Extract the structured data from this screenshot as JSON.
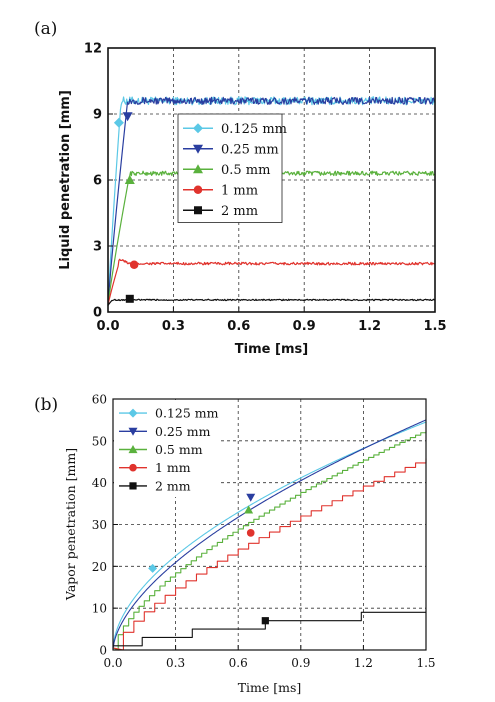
{
  "chart_data": [
    {
      "panel_label": "(a)",
      "type": "line",
      "xlabel": "Time [ms]",
      "ylabel": "Liquid penetration [mm]",
      "xlim": [
        0.0,
        1.5
      ],
      "ylim": [
        0,
        12
      ],
      "xticks": [
        "0.0",
        "0.3",
        "0.6",
        "0.9",
        "1.2",
        "1.5"
      ],
      "yticks": [
        "0",
        "3",
        "6",
        "9",
        "12"
      ],
      "grid": "dashed",
      "legend_position": "center-left",
      "series": [
        {
          "name": "0.125 mm",
          "color": "#5bc8e6",
          "marker": "diamond",
          "rise_time": 0.06,
          "plateau": 9.6,
          "noise": 0.18,
          "marker_point": [
            0.05,
            8.6
          ]
        },
        {
          "name": "0.25 mm",
          "color": "#2a3ea0",
          "marker": "triangle-down",
          "rise_time": 0.09,
          "plateau": 9.6,
          "noise": 0.16,
          "marker_point": [
            0.09,
            8.9
          ]
        },
        {
          "name": "0.5 mm",
          "color": "#5ab13d",
          "marker": "triangle-up",
          "rise_time": 0.1,
          "plateau": 6.3,
          "noise": 0.1,
          "marker_point": [
            0.1,
            6.0
          ]
        },
        {
          "name": "1 mm",
          "color": "#e0332d",
          "marker": "circle",
          "rise_time": 0.05,
          "plateau": 2.2,
          "noise": 0.06,
          "marker_point": [
            0.12,
            2.15
          ]
        },
        {
          "name": "2 mm",
          "color": "#111111",
          "marker": "square",
          "rise_time": 0.02,
          "plateau": 0.55,
          "noise": 0.03,
          "marker_point": [
            0.1,
            0.6
          ]
        }
      ]
    },
    {
      "panel_label": "(b)",
      "type": "line",
      "xlabel": "Time [ms]",
      "ylabel": "Vapor penetration [mm]",
      "xlim": [
        0.0,
        1.5
      ],
      "ylim": [
        0,
        60
      ],
      "xticks": [
        "0.0",
        "0.3",
        "0.6",
        "0.9",
        "1.2",
        "1.5"
      ],
      "yticks": [
        "0",
        "10",
        "20",
        "30",
        "40",
        "50",
        "60"
      ],
      "grid": "dashed",
      "legend_position": "top-left",
      "series": [
        {
          "name": "0.125 mm",
          "color": "#5bc8e6",
          "marker": "diamond",
          "end_value": 54.5,
          "exponent": 0.55,
          "steps": 0,
          "marker_point": [
            0.19,
            19.5
          ]
        },
        {
          "name": "0.25 mm",
          "color": "#2a3ea0",
          "marker": "triangle-down",
          "end_value": 55.0,
          "exponent": 0.6,
          "steps": 0,
          "marker_point": [
            0.66,
            36.5
          ]
        },
        {
          "name": "0.5 mm",
          "color": "#5ab13d",
          "marker": "triangle-up",
          "end_value": 52.5,
          "exponent": 0.65,
          "steps": 60,
          "marker_point": [
            0.65,
            33.5
          ]
        },
        {
          "name": "1 mm",
          "color": "#e0332d",
          "marker": "circle",
          "end_value": 45.8,
          "exponent": 0.7,
          "steps": 30,
          "marker_point": [
            0.66,
            28.0
          ]
        },
        {
          "name": "2 mm",
          "color": "#111111",
          "marker": "square",
          "step_points": [
            [
              0.0,
              1.0
            ],
            [
              0.03,
              1.0
            ],
            [
              0.14,
              3.0
            ],
            [
              0.38,
              5.0
            ],
            [
              0.73,
              7.0
            ],
            [
              1.19,
              9.0
            ],
            [
              1.5,
              9.0
            ]
          ],
          "marker_point": [
            0.73,
            7.0
          ]
        }
      ]
    }
  ]
}
